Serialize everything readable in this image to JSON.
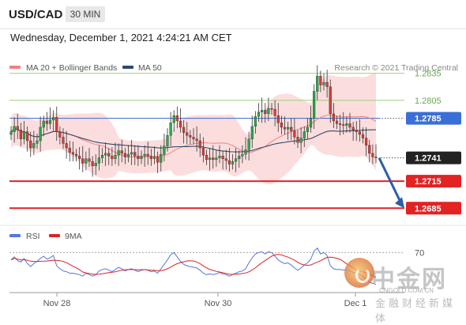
{
  "header": {
    "pair": "USD/CAD",
    "timeframe": "30 MIN",
    "datetime": "Wednesday, December 1, 2021 4:24:21 AM CET"
  },
  "legend": {
    "bollinger": "MA 20 + Bollinger Bands",
    "ma50": "MA 50",
    "source": "Research © 2021 Trading Central",
    "rsi": "RSI",
    "rsi_ma": "9MA"
  },
  "colors": {
    "bollinger": "#f08080",
    "band_fill": "#fbd7d7",
    "ma50": "#2c4a6e",
    "resistance": "#9ccf7c",
    "pivot": "#4a78d8",
    "support": "#e32222",
    "current": "#222222",
    "arrow": "#2b5ea8",
    "bull": "#2aa84a",
    "bear": "#d93a3a",
    "rsi": "#5577dd",
    "rsi_ma": "#dd2222"
  },
  "watermark": {
    "brand": "中金网",
    "domain": "CNGOLD.COM.CN",
    "tagline": "金融财经新媒体"
  },
  "chart_data": [
    {
      "type": "candlestick",
      "title": "USD/CAD",
      "x_ticks": [
        "Nov 28",
        "Nov 30",
        "Dec 1"
      ],
      "ylim": [
        1.2665,
        1.2855
      ],
      "levels": [
        {
          "label": "1.2835",
          "value": 1.2835,
          "kind": "resistance"
        },
        {
          "label": "1.2805",
          "value": 1.2805,
          "kind": "resistance"
        },
        {
          "label": "1.2785",
          "value": 1.2785,
          "kind": "pivot"
        },
        {
          "label": "1.2741",
          "value": 1.2741,
          "kind": "current"
        },
        {
          "label": "1.2715",
          "value": 1.2715,
          "kind": "support"
        },
        {
          "label": "1.2685",
          "value": 1.2685,
          "kind": "support"
        }
      ],
      "projection": {
        "from": 1.2741,
        "to": 1.2685
      },
      "close_series": [
        1.277,
        1.2776,
        1.2772,
        1.2762,
        1.277,
        1.276,
        1.2752,
        1.2757,
        1.276,
        1.2775,
        1.2782,
        1.2779,
        1.2783,
        1.2786,
        1.277,
        1.2764,
        1.2757,
        1.2752,
        1.2747,
        1.2745,
        1.2743,
        1.274,
        1.2735,
        1.274,
        1.2737,
        1.2732,
        1.2735,
        1.2741,
        1.2744,
        1.2746,
        1.2743,
        1.274,
        1.2744,
        1.2749,
        1.2746,
        1.2742,
        1.2745,
        1.2747,
        1.2743,
        1.274,
        1.2743,
        1.2745,
        1.2743,
        1.274,
        1.2742,
        1.2736,
        1.2745,
        1.2754,
        1.2766,
        1.278,
        1.2788,
        1.2782,
        1.2775,
        1.2769,
        1.2766,
        1.2764,
        1.2762,
        1.276,
        1.2752,
        1.2744,
        1.2739,
        1.2741,
        1.2739,
        1.2741,
        1.2743,
        1.274,
        1.2738,
        1.2734,
        1.2737,
        1.274,
        1.2743,
        1.2745,
        1.275,
        1.2762,
        1.2776,
        1.2787,
        1.2792,
        1.2794,
        1.279,
        1.2796,
        1.2795,
        1.2788,
        1.278,
        1.2775,
        1.2773,
        1.2775,
        1.2771,
        1.2764,
        1.2758,
        1.2763,
        1.277,
        1.2775,
        1.2785,
        1.2815,
        1.2832,
        1.2822,
        1.2825,
        1.282,
        1.279,
        1.2782,
        1.2779,
        1.2778,
        1.2777,
        1.2779,
        1.2775,
        1.2772,
        1.277,
        1.2767,
        1.2763,
        1.2755,
        1.2746,
        1.2742,
        1.2741
      ]
    },
    {
      "type": "line",
      "title": "RSI",
      "series": [
        {
          "name": "RSI"
        },
        {
          "name": "9MA"
        }
      ],
      "y_ticks": [
        70
      ],
      "ylim": [
        20,
        80
      ],
      "rsi_values": [
        60,
        64,
        59,
        57,
        62,
        55,
        51,
        55,
        58,
        62,
        65,
        61,
        63,
        66,
        52,
        48,
        45,
        44,
        42,
        42,
        41,
        40,
        38,
        42,
        40,
        38,
        40,
        45,
        47,
        48,
        46,
        44,
        47,
        50,
        48,
        45,
        47,
        48,
        46,
        44,
        46,
        47,
        46,
        44,
        45,
        42,
        48,
        54,
        60,
        67,
        70,
        64,
        58,
        54,
        52,
        51,
        50,
        49,
        46,
        42,
        40,
        41,
        40,
        41,
        43,
        41,
        40,
        38,
        40,
        42,
        44,
        45,
        48,
        56,
        63,
        68,
        70,
        71,
        68,
        71,
        70,
        65,
        60,
        57,
        55,
        56,
        53,
        49,
        46,
        49,
        53,
        56,
        61,
        72,
        76,
        68,
        70,
        66,
        52,
        48,
        47,
        47,
        46,
        47,
        45,
        43,
        42,
        40,
        38,
        34,
        30,
        28,
        27
      ]
    }
  ]
}
